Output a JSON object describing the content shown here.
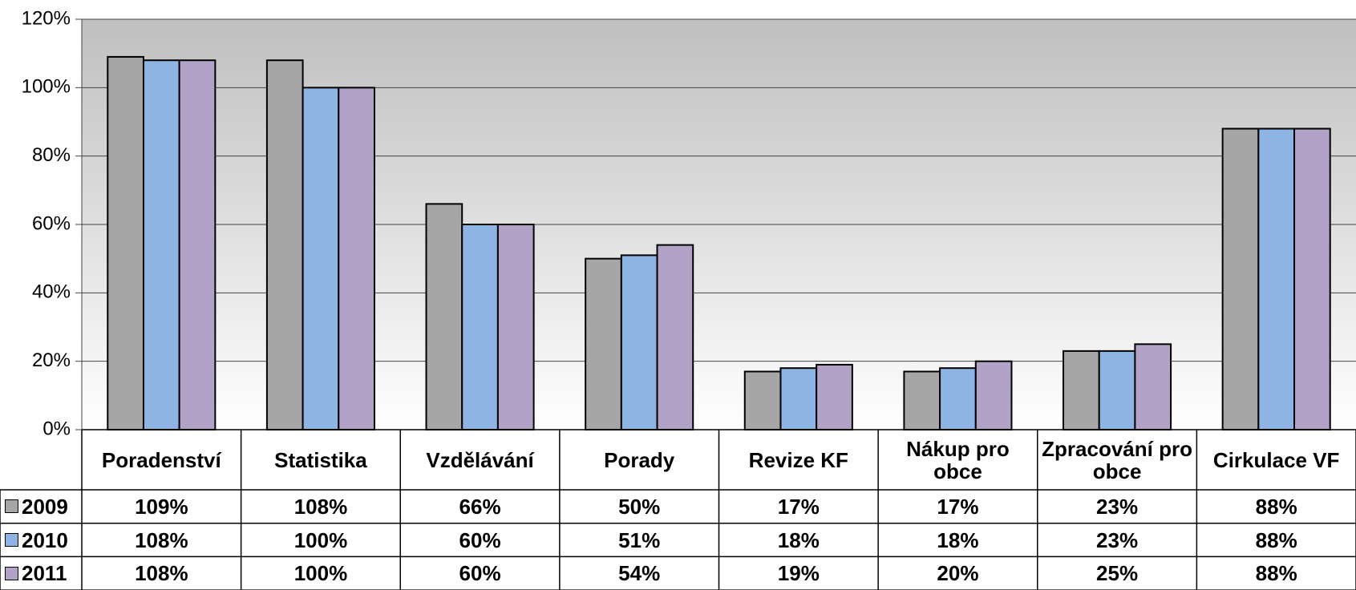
{
  "chart_data": {
    "type": "bar",
    "categories": [
      "Poradenství",
      "Statistika",
      "Vzdělávání",
      "Porady",
      "Revize KF",
      "Nákup pro obce",
      "Zpracování pro obce",
      "Cirkulace VF"
    ],
    "series": [
      {
        "name": "2009",
        "color": "#a6a6a6",
        "values": [
          109,
          108,
          66,
          50,
          17,
          17,
          23,
          88
        ],
        "value_labels": [
          "109%",
          "108%",
          "66%",
          "50%",
          "17%",
          "17%",
          "23%",
          "88%"
        ]
      },
      {
        "name": "2010",
        "color": "#8eb4e3",
        "values": [
          108,
          100,
          60,
          51,
          18,
          18,
          23,
          88
        ],
        "value_labels": [
          "108%",
          "100%",
          "60%",
          "51%",
          "18%",
          "18%",
          "23%",
          "88%"
        ]
      },
      {
        "name": "2011",
        "color": "#b3a2c7",
        "values": [
          108,
          100,
          60,
          54,
          19,
          20,
          25,
          88
        ],
        "value_labels": [
          "108%",
          "100%",
          "60%",
          "54%",
          "19%",
          "20%",
          "25%",
          "88%"
        ]
      }
    ],
    "ylim": [
      0,
      120
    ],
    "yticks": [
      {
        "value": 0,
        "label": "0%"
      },
      {
        "value": 20,
        "label": "20%"
      },
      {
        "value": 40,
        "label": "40%"
      },
      {
        "value": 60,
        "label": "60%"
      },
      {
        "value": 80,
        "label": "80%"
      },
      {
        "value": 100,
        "label": "100%"
      },
      {
        "value": 120,
        "label": "120%"
      }
    ],
    "grid": true
  }
}
